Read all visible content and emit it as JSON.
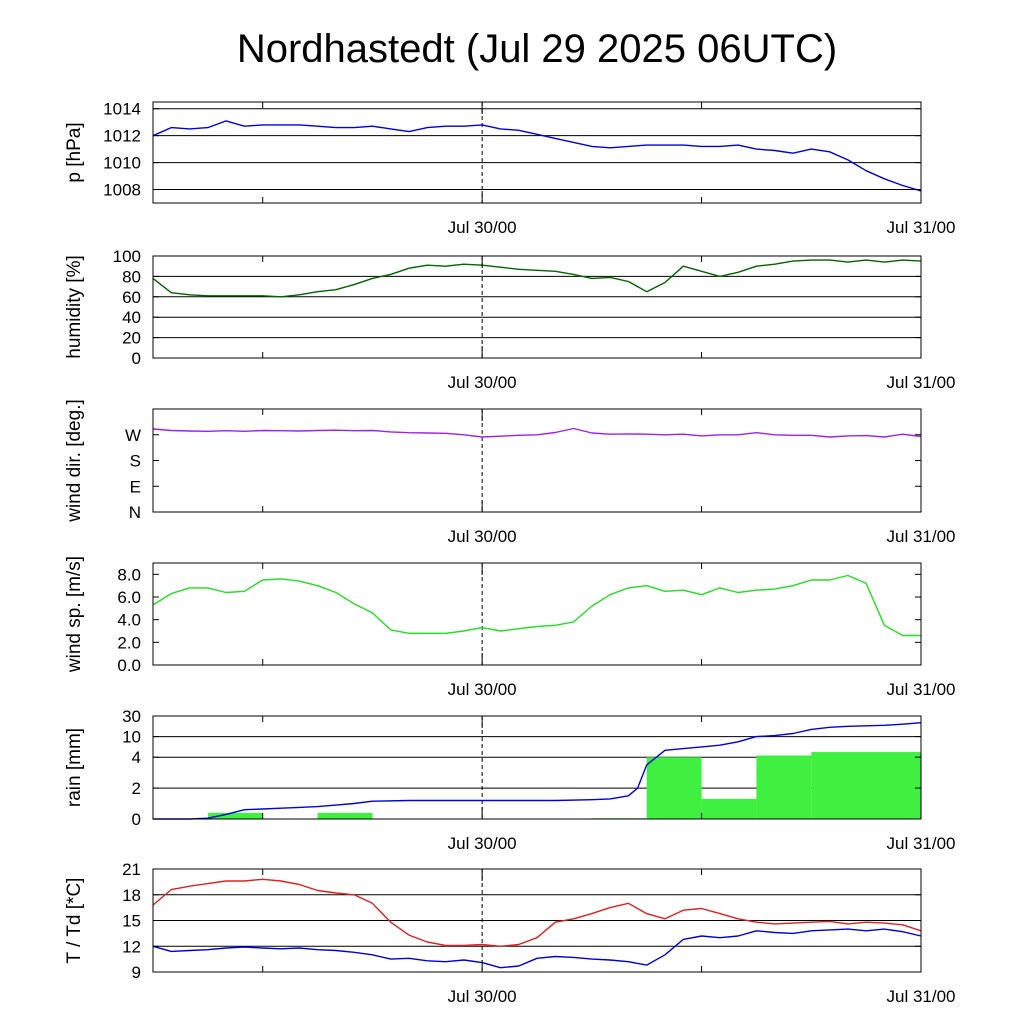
{
  "title": "Nordhastedt (Jul 29 2025 06UTC)",
  "chart_data": [
    {
      "type": "line",
      "ylabel": "p [hPa]",
      "ylim": [
        1007,
        1014.5
      ],
      "yticks": [
        {
          "value": 1008,
          "label": "1008"
        },
        {
          "value": 1010,
          "label": "1010"
        },
        {
          "value": 1012,
          "label": "1012"
        },
        {
          "value": 1014,
          "label": "1014"
        }
      ],
      "grid": true,
      "series": [
        {
          "color": "#0000e0",
          "x": [
            0,
            1,
            2,
            3,
            4,
            5,
            6,
            7,
            8,
            9,
            10,
            11,
            12,
            13,
            14,
            15,
            16,
            17,
            18,
            19,
            20,
            21,
            22,
            23,
            24,
            25,
            26,
            27,
            28,
            29,
            30,
            31,
            32,
            33,
            34,
            35,
            36,
            37,
            38,
            39,
            40,
            41,
            42
          ],
          "y": [
            1012.0,
            1012.6,
            1012.5,
            1012.6,
            1013.1,
            1012.7,
            1012.8,
            1012.8,
            1012.8,
            1012.7,
            1012.6,
            1012.6,
            1012.7,
            1012.5,
            1012.3,
            1012.6,
            1012.7,
            1012.7,
            1012.8,
            1012.5,
            1012.4,
            1012.1,
            1011.8,
            1011.5,
            1011.2,
            1011.1,
            1011.2,
            1011.3,
            1011.3,
            1011.3,
            1011.2,
            1011.2,
            1011.3,
            1011.0,
            1010.9,
            1010.7,
            1011.0,
            1010.8,
            1010.2,
            1009.4,
            1008.8,
            1008.3,
            1007.9
          ]
        }
      ]
    },
    {
      "type": "line",
      "ylabel": "humidity [%]",
      "ylim": [
        0,
        100
      ],
      "yticks": [
        {
          "value": 0,
          "label": "0"
        },
        {
          "value": 20,
          "label": "20"
        },
        {
          "value": 40,
          "label": "40"
        },
        {
          "value": 60,
          "label": "60"
        },
        {
          "value": 80,
          "label": "80"
        },
        {
          "value": 100,
          "label": "100"
        }
      ],
      "grid": true,
      "series": [
        {
          "color": "#006400",
          "x": [
            0,
            1,
            2,
            3,
            4,
            5,
            6,
            7,
            8,
            9,
            10,
            11,
            12,
            13,
            14,
            15,
            16,
            17,
            18,
            19,
            20,
            21,
            22,
            23,
            24,
            25,
            26,
            27,
            28,
            29,
            30,
            31,
            32,
            33,
            34,
            35,
            36,
            37,
            38,
            39,
            40,
            41,
            42
          ],
          "y": [
            78,
            64,
            62,
            61,
            61,
            61,
            61,
            60,
            62,
            65,
            67,
            72,
            78,
            82,
            88,
            91,
            90,
            92,
            91,
            89,
            87,
            86,
            85,
            82,
            78,
            79,
            75,
            65,
            74,
            90,
            85,
            80,
            84,
            90,
            92,
            95,
            96,
            96,
            94,
            96,
            94,
            96,
            95
          ]
        }
      ]
    },
    {
      "type": "line",
      "ylabel": "wind dir. [deg.]",
      "ylim": [
        0,
        360
      ],
      "yticks": [
        {
          "value": 0,
          "label": "N"
        },
        {
          "value": 90,
          "label": "E"
        },
        {
          "value": 180,
          "label": "S"
        },
        {
          "value": 270,
          "label": "W"
        }
      ],
      "grid": false,
      "series": [
        {
          "color": "#a020f0",
          "x": [
            0,
            1,
            2,
            3,
            4,
            5,
            6,
            7,
            8,
            9,
            10,
            11,
            12,
            13,
            14,
            15,
            16,
            17,
            18,
            19,
            20,
            21,
            22,
            23,
            24,
            25,
            26,
            27,
            28,
            29,
            30,
            31,
            32,
            33,
            34,
            35,
            36,
            37,
            38,
            39,
            40,
            41,
            42
          ],
          "y": [
            290,
            285,
            283,
            282,
            284,
            282,
            285,
            284,
            283,
            285,
            286,
            284,
            285,
            280,
            277,
            276,
            275,
            270,
            262,
            265,
            268,
            270,
            278,
            292,
            276,
            272,
            273,
            272,
            270,
            272,
            266,
            270,
            270,
            277,
            270,
            268,
            268,
            262,
            266,
            267,
            262,
            272,
            264
          ]
        }
      ]
    },
    {
      "type": "line",
      "ylabel": "wind sp. [m/s]",
      "ylim": [
        0,
        9
      ],
      "yticks": [
        {
          "value": 0,
          "label": "0.0"
        },
        {
          "value": 2,
          "label": "2.0"
        },
        {
          "value": 4,
          "label": "4.0"
        },
        {
          "value": 6,
          "label": "6.0"
        },
        {
          "value": 8,
          "label": "8.0"
        }
      ],
      "grid": false,
      "series": [
        {
          "color": "#20e020",
          "x": [
            0,
            1,
            2,
            3,
            4,
            5,
            6,
            7,
            8,
            9,
            10,
            11,
            12,
            13,
            14,
            15,
            16,
            17,
            18,
            19,
            20,
            21,
            22,
            23,
            24,
            25,
            26,
            27,
            28,
            29,
            30,
            31,
            32,
            33,
            34,
            35,
            36,
            37,
            38,
            39,
            40,
            41,
            42
          ],
          "y": [
            5.3,
            6.3,
            6.8,
            6.8,
            6.4,
            6.5,
            7.5,
            7.6,
            7.4,
            7.0,
            6.4,
            5.4,
            4.6,
            3.1,
            2.8,
            2.8,
            2.8,
            3.0,
            3.3,
            3.0,
            3.2,
            3.4,
            3.5,
            3.8,
            5.2,
            6.2,
            6.8,
            7.0,
            6.5,
            6.6,
            6.2,
            6.8,
            6.4,
            6.6,
            6.7,
            7.0,
            7.5,
            7.5,
            7.9,
            7.2,
            3.5,
            2.6,
            2.6
          ]
        }
      ]
    },
    {
      "type": "bar+line",
      "ylabel": "rain [mm]",
      "ylim": [
        0,
        30
      ],
      "yticks": [
        {
          "value": 0,
          "label": "0"
        },
        {
          "value": 2,
          "label": "2"
        },
        {
          "value": 4,
          "label": "4"
        },
        {
          "value": 10,
          "label": "10"
        },
        {
          "value": 30,
          "label": "30"
        }
      ],
      "scale": "pseudo-log",
      "grid": true,
      "bars": {
        "color": "#40f040",
        "items": [
          {
            "start": 3,
            "end": 6,
            "value": 0.4
          },
          {
            "start": 9,
            "end": 12,
            "value": 0.4
          },
          {
            "start": 24,
            "end": 27,
            "value": 0.05
          },
          {
            "start": 27,
            "end": 30,
            "value": 4.0
          },
          {
            "start": 30,
            "end": 33,
            "value": 1.3
          },
          {
            "start": 33,
            "end": 36,
            "value": 4.5
          },
          {
            "start": 36,
            "end": 42,
            "value": 5.5
          }
        ]
      },
      "series": [
        {
          "color": "#0000e0",
          "x": [
            0,
            2,
            3,
            4,
            5,
            6,
            7,
            8,
            9,
            10,
            11,
            12,
            14,
            16,
            18,
            20,
            22,
            24,
            25,
            26,
            26.5,
            27,
            28,
            29,
            30,
            31,
            32,
            33,
            34,
            35,
            36,
            37,
            38,
            39,
            40,
            41,
            42
          ],
          "y": [
            0,
            0,
            0.05,
            0.3,
            0.6,
            0.65,
            0.7,
            0.75,
            0.8,
            0.9,
            1.0,
            1.15,
            1.2,
            1.2,
            1.2,
            1.2,
            1.2,
            1.25,
            1.3,
            1.5,
            2.0,
            3.5,
            6.0,
            6.5,
            7.0,
            7.5,
            8.5,
            10.0,
            11.0,
            13.0,
            17.0,
            19.0,
            20.0,
            20.5,
            21.0,
            22.0,
            23.5
          ]
        }
      ]
    },
    {
      "type": "line",
      "ylabel": "T / Td [*C]",
      "ylim": [
        9,
        21
      ],
      "yticks": [
        {
          "value": 9,
          "label": "9"
        },
        {
          "value": 12,
          "label": "12"
        },
        {
          "value": 15,
          "label": "15"
        },
        {
          "value": 18,
          "label": "18"
        },
        {
          "value": 21,
          "label": "21"
        }
      ],
      "grid": true,
      "series": [
        {
          "color": "#e02020",
          "x": [
            0,
            1,
            2,
            3,
            4,
            5,
            6,
            7,
            8,
            9,
            10,
            11,
            12,
            13,
            14,
            15,
            16,
            17,
            18,
            19,
            20,
            21,
            22,
            23,
            24,
            25,
            26,
            27,
            28,
            29,
            30,
            31,
            32,
            33,
            34,
            35,
            36,
            37,
            38,
            39,
            40,
            41,
            42
          ],
          "y": [
            16.8,
            18.6,
            19.0,
            19.3,
            19.6,
            19.6,
            19.8,
            19.6,
            19.2,
            18.5,
            18.2,
            18.0,
            17.0,
            14.8,
            13.3,
            12.5,
            12.1,
            12.1,
            12.2,
            12.0,
            12.2,
            13.0,
            14.8,
            15.2,
            15.8,
            16.5,
            17.0,
            15.8,
            15.2,
            16.2,
            16.4,
            15.8,
            15.2,
            14.8,
            14.6,
            14.7,
            14.8,
            14.9,
            14.6,
            14.8,
            14.7,
            14.5,
            13.8
          ]
        },
        {
          "color": "#0000e0",
          "x": [
            0,
            1,
            2,
            3,
            4,
            5,
            6,
            7,
            8,
            9,
            10,
            11,
            12,
            13,
            14,
            15,
            16,
            17,
            18,
            19,
            20,
            21,
            22,
            23,
            24,
            25,
            26,
            27,
            28,
            29,
            30,
            31,
            32,
            33,
            34,
            35,
            36,
            37,
            38,
            39,
            40,
            41,
            42
          ],
          "y": [
            12.0,
            11.4,
            11.5,
            11.6,
            11.8,
            11.9,
            11.8,
            11.7,
            11.8,
            11.6,
            11.5,
            11.3,
            11.0,
            10.5,
            10.6,
            10.3,
            10.2,
            10.4,
            10.1,
            9.5,
            9.7,
            10.6,
            10.8,
            10.7,
            10.5,
            10.4,
            10.2,
            9.8,
            11.0,
            12.8,
            13.2,
            13.0,
            13.2,
            13.8,
            13.6,
            13.5,
            13.8,
            13.9,
            14.0,
            13.8,
            14.0,
            13.7,
            13.2
          ]
        }
      ]
    }
  ],
  "xaxis": {
    "range": [
      0,
      42
    ],
    "minor_ticks": [
      6,
      30
    ],
    "major": [
      {
        "value": 18,
        "label": "Jul 30/00"
      },
      {
        "value": 42,
        "label": "Jul 31/00"
      }
    ],
    "dashed": 18
  }
}
